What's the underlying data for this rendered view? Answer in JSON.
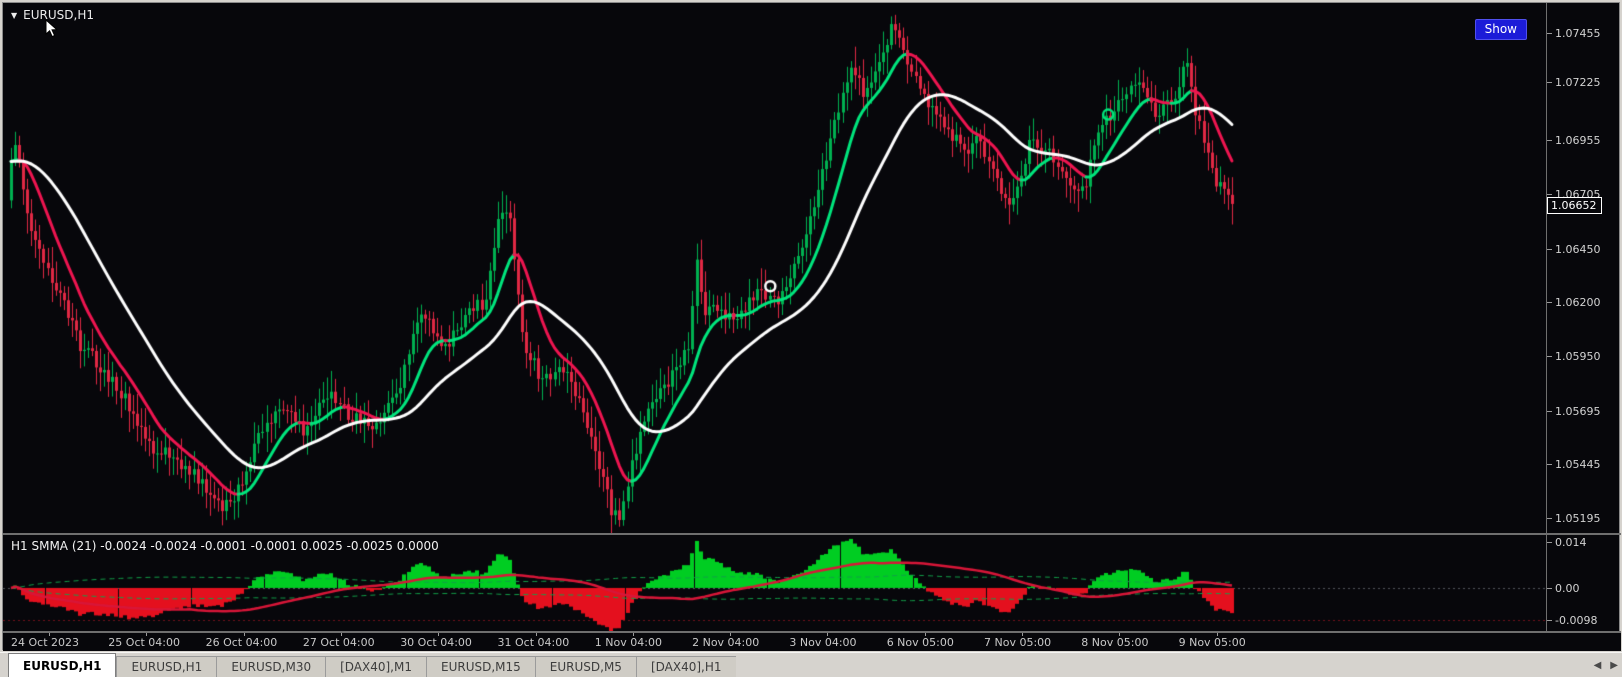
{
  "window": {
    "symbol_chip": "EURUSD,H1",
    "show_button_label": "Show"
  },
  "icons": {
    "dropdown": "▼",
    "scroll_left": "◀",
    "scroll_right": "▶"
  },
  "price_scale": {
    "ticks": [
      "1.07455",
      "1.07225",
      "1.06955",
      "1.06705",
      "1.06450",
      "1.06200",
      "1.05950",
      "1.05695",
      "1.05445",
      "1.05195"
    ],
    "current_price_label": "1.06652"
  },
  "indicator_pane": {
    "label": "H1 SMMA (21) -0.0024 -0.0024 -0.0001 -0.0001 0.0025 -0.0025 0.0000",
    "ticks": [
      "0.014",
      "0.00",
      "-0.0098"
    ]
  },
  "tabs": [
    {
      "label": "EURUSD,H1",
      "active": true
    },
    {
      "label": "EURUSD,H1",
      "active": false
    },
    {
      "label": "EURUSD,M30",
      "active": false
    },
    {
      "label": "[DAX40],M1",
      "active": false
    },
    {
      "label": "EURUSD,M15",
      "active": false
    },
    {
      "label": "EURUSD,M5",
      "active": false
    },
    {
      "label": "[DAX40],H1",
      "active": false
    }
  ],
  "chart_data": {
    "type": "candlestick",
    "symbol": "EURUSD",
    "timeframe": "H1",
    "price_range": [
      1.0513,
      1.076
    ],
    "price_axis_ticks": [
      1.07455,
      1.07225,
      1.06955,
      1.06705,
      1.0645,
      1.062,
      1.0595,
      1.05695,
      1.05445,
      1.05195
    ],
    "current_price": 1.06652,
    "bars_per_day": 24,
    "x_labels": [
      "24 Oct 2023",
      "25 Oct 04:00",
      "26 Oct 04:00",
      "27 Oct 04:00",
      "30 Oct 04:00",
      "31 Oct 04:00",
      "1 Nov 04:00",
      "2 Nov 04:00",
      "3 Nov 04:00",
      "6 Nov 05:00",
      "7 Nov 05:00",
      "8 Nov 05:00",
      "9 Nov 05:00"
    ],
    "price_path": [
      [
        0.0,
        1.0668
      ],
      [
        0.08,
        1.0697
      ],
      [
        0.2,
        1.0662
      ],
      [
        0.35,
        1.0645
      ],
      [
        0.55,
        1.0622
      ],
      [
        0.75,
        1.0601
      ],
      [
        1.0,
        1.0589
      ],
      [
        1.25,
        1.0573
      ],
      [
        1.5,
        1.0552
      ],
      [
        1.75,
        1.0548
      ],
      [
        2.0,
        1.0536
      ],
      [
        2.2,
        1.0525
      ],
      [
        2.35,
        1.0529
      ],
      [
        2.5,
        1.0549
      ],
      [
        2.7,
        1.0567
      ],
      [
        2.9,
        1.0572
      ],
      [
        3.05,
        1.0561
      ],
      [
        3.3,
        1.0578
      ],
      [
        3.5,
        1.0569
      ],
      [
        3.75,
        1.0564
      ],
      [
        4.0,
        1.0576
      ],
      [
        4.2,
        1.0609
      ],
      [
        4.3,
        1.0616
      ],
      [
        4.5,
        1.0598
      ],
      [
        4.7,
        1.0613
      ],
      [
        4.9,
        1.0621
      ],
      [
        5.05,
        1.0658
      ],
      [
        5.15,
        1.0663
      ],
      [
        5.3,
        1.0604
      ],
      [
        5.5,
        1.0582
      ],
      [
        5.7,
        1.0591
      ],
      [
        5.9,
        1.057
      ],
      [
        6.05,
        1.0552
      ],
      [
        6.2,
        1.0524
      ],
      [
        6.3,
        1.0521
      ],
      [
        6.45,
        1.0552
      ],
      [
        6.65,
        1.0576
      ],
      [
        6.85,
        1.0587
      ],
      [
        7.0,
        1.0601
      ],
      [
        7.08,
        1.0638
      ],
      [
        7.15,
        1.0618
      ],
      [
        7.3,
        1.0615
      ],
      [
        7.5,
        1.0613
      ],
      [
        7.7,
        1.0626
      ],
      [
        7.9,
        1.0621
      ],
      [
        8.1,
        1.0638
      ],
      [
        8.3,
        1.0669
      ],
      [
        8.5,
        1.0703
      ],
      [
        8.65,
        1.0729
      ],
      [
        8.8,
        1.0719
      ],
      [
        9.0,
        1.0737
      ],
      [
        9.1,
        1.0749
      ],
      [
        9.25,
        1.073
      ],
      [
        9.45,
        1.0712
      ],
      [
        9.65,
        1.0701
      ],
      [
        9.85,
        1.0691
      ],
      [
        10.0,
        1.0697
      ],
      [
        10.15,
        1.0677
      ],
      [
        10.3,
        1.0662
      ],
      [
        10.5,
        1.0694
      ],
      [
        10.7,
        1.0691
      ],
      [
        10.9,
        1.0679
      ],
      [
        11.05,
        1.0672
      ],
      [
        11.2,
        1.0698
      ],
      [
        11.4,
        1.0713
      ],
      [
        11.6,
        1.0721
      ],
      [
        11.8,
        1.0709
      ],
      [
        12.0,
        1.0716
      ],
      [
        12.1,
        1.0734
      ],
      [
        12.25,
        1.0702
      ],
      [
        12.4,
        1.0678
      ],
      [
        12.6,
        1.0665
      ]
    ],
    "candle_colors": {
      "bull": "#00b050",
      "bear": "#e02844"
    },
    "overlays": {
      "fast_ma": {
        "type": "slope-colored-ma",
        "up_color": "#00e57d",
        "down_color": "#ee1550",
        "width": 3,
        "alpha": 0.28
      },
      "slow_ma": {
        "type": "ma",
        "color": "#ffffff",
        "width": 3,
        "alpha": 0.12
      },
      "markers": [
        {
          "t": 7.8,
          "price": 1.0628,
          "color": "#ffffff"
        },
        {
          "t": 11.27,
          "price": 1.0708,
          "color": "#00e57d"
        }
      ]
    },
    "oscillator": {
      "name": "SMMA(21)",
      "range": [
        -0.013,
        0.016
      ],
      "axis_ticks": [
        0.014,
        0,
        -0.0098
      ],
      "level_line": -0.0098,
      "period": 30,
      "display_scale": 1.9,
      "signal_period": 45,
      "band_period": 60,
      "band_scale": 0.5,
      "pos_color": "#00cd22",
      "neg_color": "#e4101e",
      "signal_color": "#d81638",
      "band_color": "#12a049",
      "zero_line_color": "#53565c",
      "level_line_color": "#74101c"
    }
  }
}
